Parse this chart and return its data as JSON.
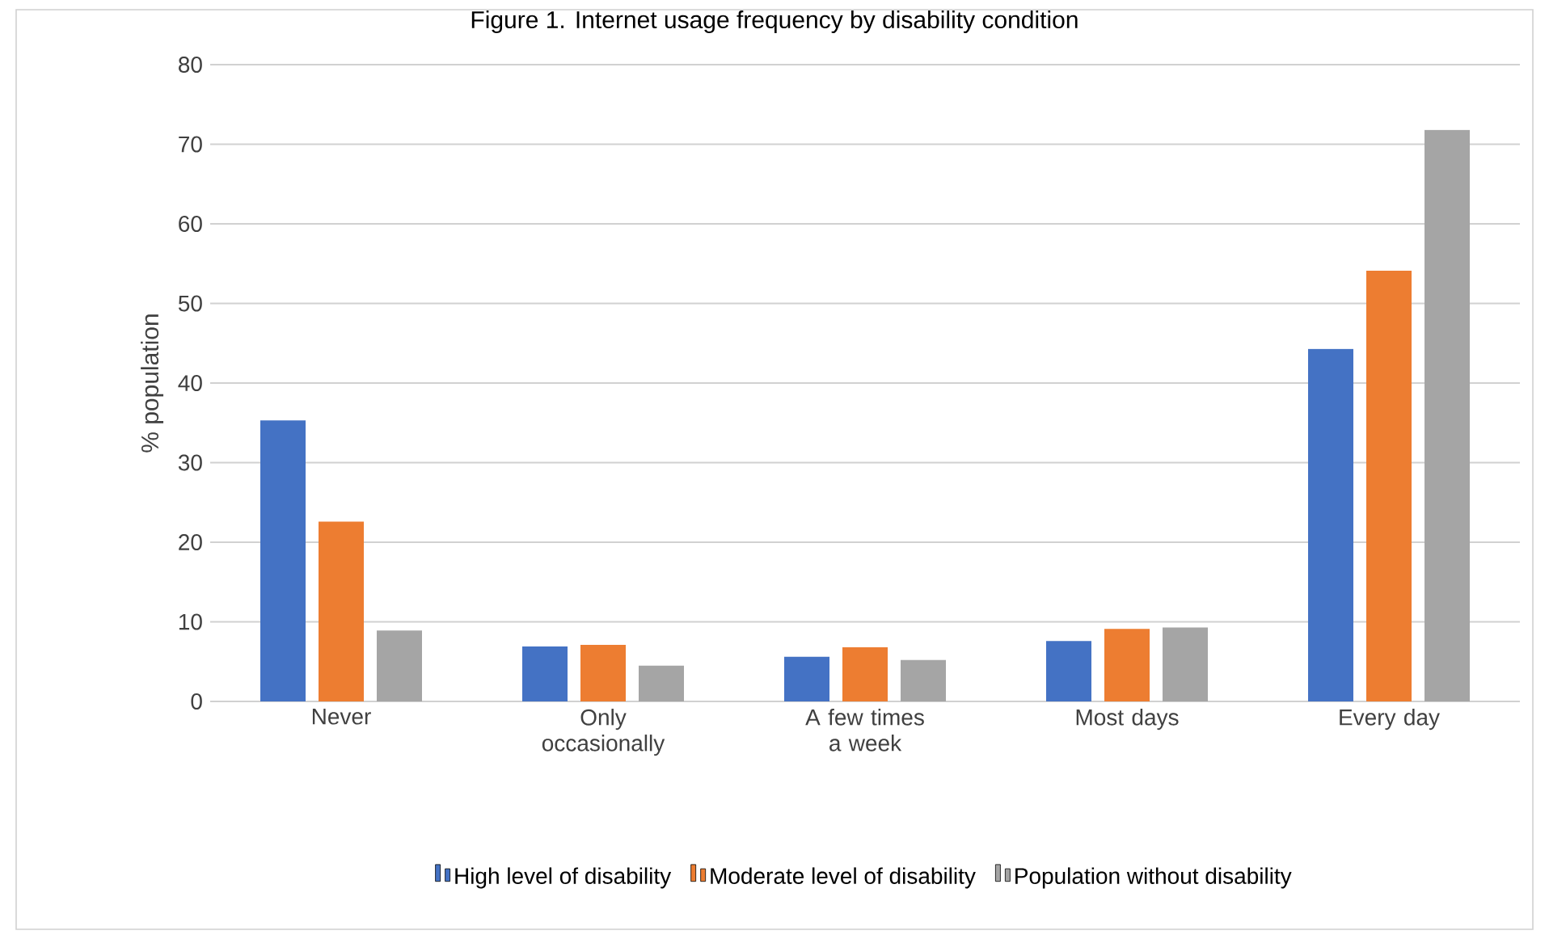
{
  "chart_data": {
    "type": "bar",
    "title": "Figure 1. Internet usage frequency by disability condition",
    "categories": [
      "Never",
      "Only occasionally",
      "A few times a week",
      "Most days",
      "Every day"
    ],
    "series": [
      {
        "name": "High level of disability",
        "color": "#4472c4",
        "values": [
          35.3,
          6.9,
          5.6,
          7.6,
          44.3
        ]
      },
      {
        "name": "Moderate level of disability",
        "color": "#ed7d31",
        "values": [
          22.6,
          7.1,
          6.8,
          9.1,
          54.1
        ]
      },
      {
        "name": "Population without disability",
        "color": "#a5a5a5",
        "values": [
          8.9,
          4.5,
          5.2,
          9.3,
          71.8
        ]
      }
    ],
    "ylabel": "% population",
    "ylim": [
      0,
      80
    ],
    "yticks": [
      0,
      10,
      20,
      30,
      40,
      50,
      60,
      70,
      80
    ],
    "grid": "y",
    "legend": "bottom"
  }
}
